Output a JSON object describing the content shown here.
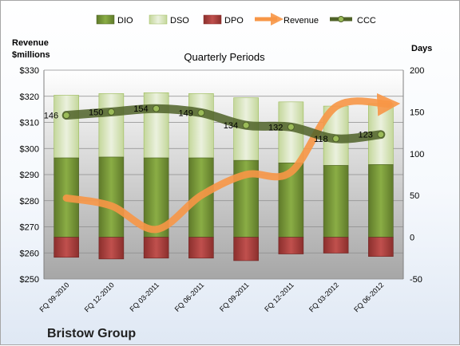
{
  "chart_data": {
    "type": "bar",
    "subtitle": "Quarterly Periods",
    "company": "Bristow Group",
    "categories": [
      "FQ 09-2010",
      "FQ 12-2010",
      "FQ 03-2011",
      "FQ 06-2011",
      "FQ 09-2011",
      "FQ 12-2011",
      "FQ 03-2012",
      "FQ 06-2012"
    ],
    "left_axis": {
      "label_line1": "Revenue",
      "label_line2": "$millions",
      "min": 250,
      "max": 330,
      "step": 10,
      "prefix": "$"
    },
    "right_axis": {
      "label": "Days",
      "min": -50,
      "max": 200,
      "step": 50
    },
    "grid": true,
    "legend_position": "top",
    "series": [
      {
        "name": "DIO",
        "kind": "bar",
        "axis": "right",
        "color": "#77933c",
        "values": [
          95,
          96,
          95,
          95,
          92,
          89,
          86,
          87
        ]
      },
      {
        "name": "DSO",
        "kind": "bar",
        "axis": "right",
        "color": "#d7e4bd",
        "values": [
          75,
          76,
          78,
          77,
          75,
          73,
          71,
          73
        ]
      },
      {
        "name": "DPO",
        "kind": "bar",
        "axis": "right",
        "color": "#c0504d",
        "values": [
          -24,
          -26,
          -25,
          -25,
          -28,
          -20,
          -19,
          -23
        ]
      },
      {
        "name": "Revenue",
        "kind": "line",
        "axis": "left",
        "color": "#f79646",
        "values": [
          281,
          278,
          269,
          282,
          290,
          291,
          316,
          317
        ]
      },
      {
        "name": "CCC",
        "kind": "line",
        "axis": "right",
        "color": "#4f6228",
        "values": [
          146,
          150,
          154,
          149,
          134,
          132,
          118,
          123
        ]
      }
    ]
  }
}
